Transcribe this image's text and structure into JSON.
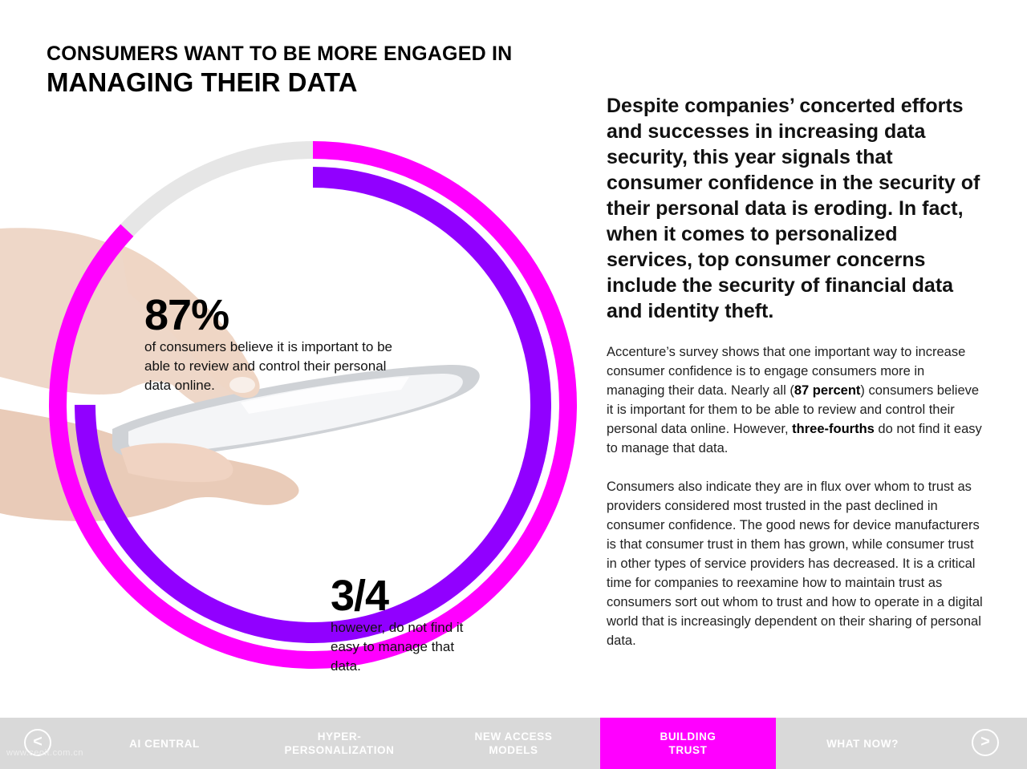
{
  "title": {
    "line1": "CONSUMERS WANT TO BE MORE ENGAGED IN",
    "line2": "MANAGING THEIR DATA"
  },
  "stats": {
    "consumers_percent": {
      "number": "87%",
      "value_fraction": 0.87,
      "text": "of consumers believe it is important to be able to review and control their personal data online."
    },
    "not_easy": {
      "number": "3/4",
      "value_fraction": 0.75,
      "text": "however, do not find it easy to manage that data."
    }
  },
  "colors": {
    "outer_ring": "#ff00ff",
    "inner_ring": "#9100ff",
    "ring_track": "#e6e6e6",
    "nav_bg": "#d9d9d9",
    "nav_active": "#ff00ff"
  },
  "lead": "Despite companies’ concerted efforts and successes in increasing data security, this year signals that consumer confidence in the security of their personal data is eroding. In fact, when it comes to personalized services, top consumer concerns include the security of financial data and identity theft.",
  "para1": {
    "part1": "Accenture’s survey shows that one important way to increase consumer confidence is to engage consumers more in managing their data. Nearly all (",
    "bold1": "87 percent",
    "part2": ") consumers believe it is important for them to be able to review and control their personal data online. However, ",
    "bold2": "three-fourths",
    "part3": " do not find it easy to manage that data."
  },
  "para2": "Consumers also indicate they are in flux over whom to trust as providers considered most trusted in the past declined in consumer confidence. The good news for device manufacturers is that consumer trust in them has grown, while consumer trust in other types of service providers has decreased. It is a critical time for companies to reexamine how to maintain trust as consumers sort out whom to trust and how to operate in a digital world that is increasingly dependent on their sharing of personal data.",
  "nav": {
    "prev": "<",
    "next": ">",
    "items": [
      {
        "label": "AI CENTRAL"
      },
      {
        "label": "HYPER-\nPERSONALIZATION"
      },
      {
        "label": "NEW ACCESS\nMODELS"
      },
      {
        "label": "BUILDING\nTRUST"
      },
      {
        "label": "WHAT NOW?"
      }
    ]
  },
  "watermark": "www.ceoit.com.cn"
}
